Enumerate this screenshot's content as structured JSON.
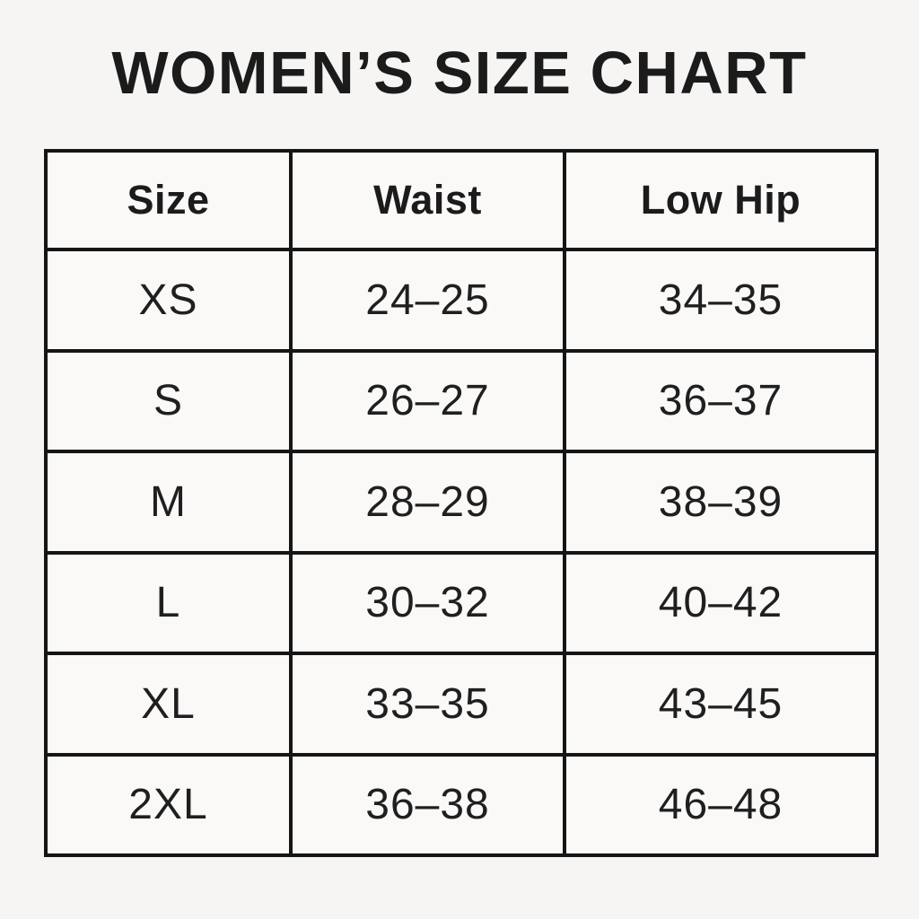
{
  "title": "WOMEN’S SIZE CHART",
  "colors": {
    "page_background": "#f6f5f3",
    "cell_background": "#faf9f8",
    "border": "#151515",
    "text": "#1c1c1c"
  },
  "chart_data": {
    "type": "table",
    "title": "WOMEN’S SIZE CHART",
    "columns": [
      "Size",
      "Waist",
      "Low Hip"
    ],
    "rows": [
      [
        "XS",
        "24–25",
        "34–35"
      ],
      [
        "S",
        "26–27",
        "36–37"
      ],
      [
        "M",
        "28–29",
        "38–39"
      ],
      [
        "L",
        "30–32",
        "40–42"
      ],
      [
        "XL",
        "33–35",
        "43–45"
      ],
      [
        "2XL",
        "36–38",
        "46–48"
      ]
    ]
  }
}
